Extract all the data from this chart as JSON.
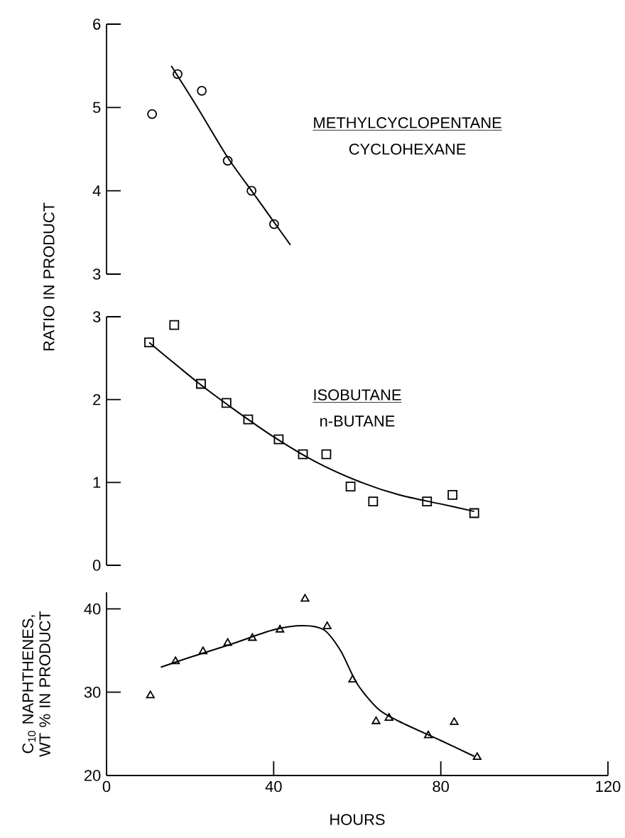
{
  "chart_data": [
    {
      "type": "scatter",
      "xlim": [
        0,
        120
      ],
      "ylim": [
        3,
        6
      ],
      "yticks": [
        3,
        4,
        5,
        6
      ],
      "tick_labels": "y",
      "annotations": [
        "METHYLCYCLOPENTANE",
        "CYCLOHEXANE"
      ],
      "series": [
        {
          "marker": "circle",
          "color": "#000000",
          "x": [
            10.9,
            17,
            22.8,
            29,
            34.7,
            40.1
          ],
          "values": [
            4.92,
            5.4,
            5.2,
            4.36,
            4.0,
            3.6
          ]
        },
        {
          "type": "line",
          "marker": "none",
          "line_style": "solid",
          "color": "#000000",
          "x": [
            15.5,
            17,
            22,
            29,
            35,
            40,
            44
          ],
          "values": [
            5.5,
            5.38,
            4.98,
            4.4,
            3.98,
            3.63,
            3.35
          ]
        }
      ]
    },
    {
      "type": "scatter",
      "xlim": [
        0,
        120
      ],
      "ylim": [
        0,
        3
      ],
      "yticks": [
        0,
        1,
        2,
        3
      ],
      "tick_labels": "y",
      "ylabel": "RATIO IN PRODUCT",
      "annotations": [
        "ISOBUTANE",
        "n-BUTANE"
      ],
      "series": [
        {
          "marker": "square",
          "color": "#000000",
          "x": [
            10.2,
            16.2,
            22.6,
            28.7,
            33.9,
            41.2,
            47.0,
            52.6,
            58.4,
            63.8,
            76.7,
            82.8,
            88.0
          ],
          "values": [
            2.69,
            2.9,
            2.19,
            1.96,
            1.76,
            1.52,
            1.34,
            1.34,
            0.95,
            0.77,
            0.77,
            0.85,
            0.63
          ]
        },
        {
          "type": "line",
          "marker": "none",
          "line_style": "solid",
          "color": "#000000",
          "x": [
            10.2,
            22,
            30,
            40,
            50,
            60,
            70,
            80,
            88
          ],
          "values": [
            2.69,
            2.2,
            1.9,
            1.55,
            1.25,
            1.02,
            0.85,
            0.74,
            0.65
          ]
        }
      ]
    },
    {
      "type": "scatter",
      "xlim": [
        0,
        120
      ],
      "xticks": [
        0,
        40,
        80,
        120
      ],
      "ylim": [
        20,
        42
      ],
      "yticks": [
        20,
        30,
        40
      ],
      "xlabel": "HOURS",
      "ylabel": "C$_{10}$ NAPHTHENES, WT % IN PRODUCT",
      "series": [
        {
          "marker": "triangle",
          "color": "#000000",
          "x": [
            10.5,
            16.5,
            23.1,
            29.0,
            34.9,
            41.5,
            47.5,
            52.8,
            58.9,
            64.5,
            67.6,
            77.0,
            83.2,
            88.7
          ],
          "values": [
            29.6,
            33.7,
            34.9,
            35.9,
            36.5,
            37.5,
            41.2,
            37.9,
            31.5,
            26.5,
            26.9,
            24.8,
            26.4,
            22.2
          ]
        },
        {
          "type": "line",
          "marker": "none",
          "line_style": "solid",
          "color": "#000000",
          "x": [
            13,
            20,
            30,
            40,
            47,
            52,
            56,
            60,
            65,
            70,
            80,
            88
          ],
          "values": [
            33,
            34.2,
            35.8,
            37.5,
            38,
            37.5,
            35,
            31,
            28,
            26.5,
            24.2,
            22.3
          ]
        }
      ]
    }
  ]
}
